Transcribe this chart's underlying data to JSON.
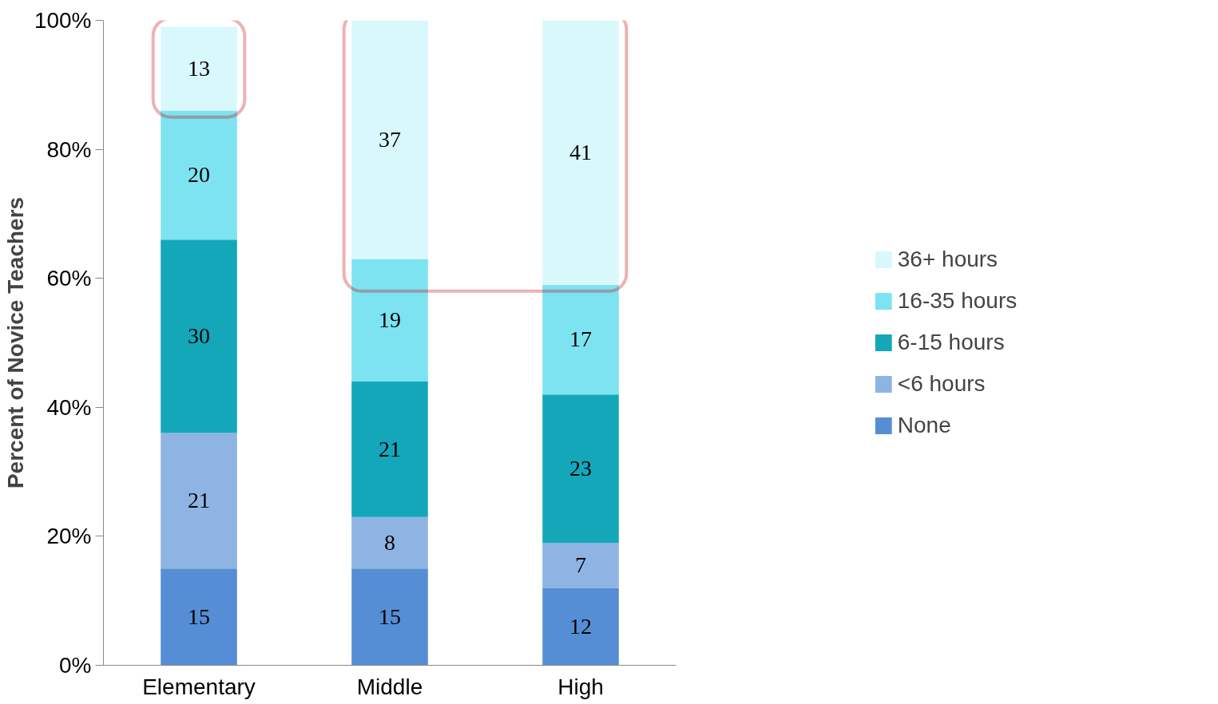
{
  "chart_data": {
    "type": "bar",
    "stacked": true,
    "ylabel": "Percent of Novice Teachers",
    "categories": [
      "Elementary",
      "Middle",
      "High"
    ],
    "series": [
      {
        "name": "None",
        "color": "#558ed5",
        "values": [
          15,
          15,
          12
        ]
      },
      {
        "name": "<6 hours",
        "color": "#8eb4e3",
        "values": [
          21,
          8,
          7
        ]
      },
      {
        "name": "6-15 hours",
        "color": "#14a7ba",
        "values": [
          30,
          21,
          23
        ]
      },
      {
        "name": "16-35 hours",
        "color": "#7ee3f0",
        "values": [
          20,
          19,
          17
        ]
      },
      {
        "name": "36+ hours",
        "color": "#d9f8fc",
        "values": [
          13,
          37,
          41
        ]
      }
    ],
    "ylim": [
      0,
      100
    ],
    "yticks": [
      {
        "value": 0,
        "label": "0%"
      },
      {
        "value": 20,
        "label": "20%"
      },
      {
        "value": 40,
        "label": "40%"
      },
      {
        "value": 60,
        "label": "60%"
      },
      {
        "value": 80,
        "label": "80%"
      },
      {
        "value": 100,
        "label": "100%"
      }
    ],
    "data_labels": true,
    "grid": false,
    "legend": "right"
  }
}
